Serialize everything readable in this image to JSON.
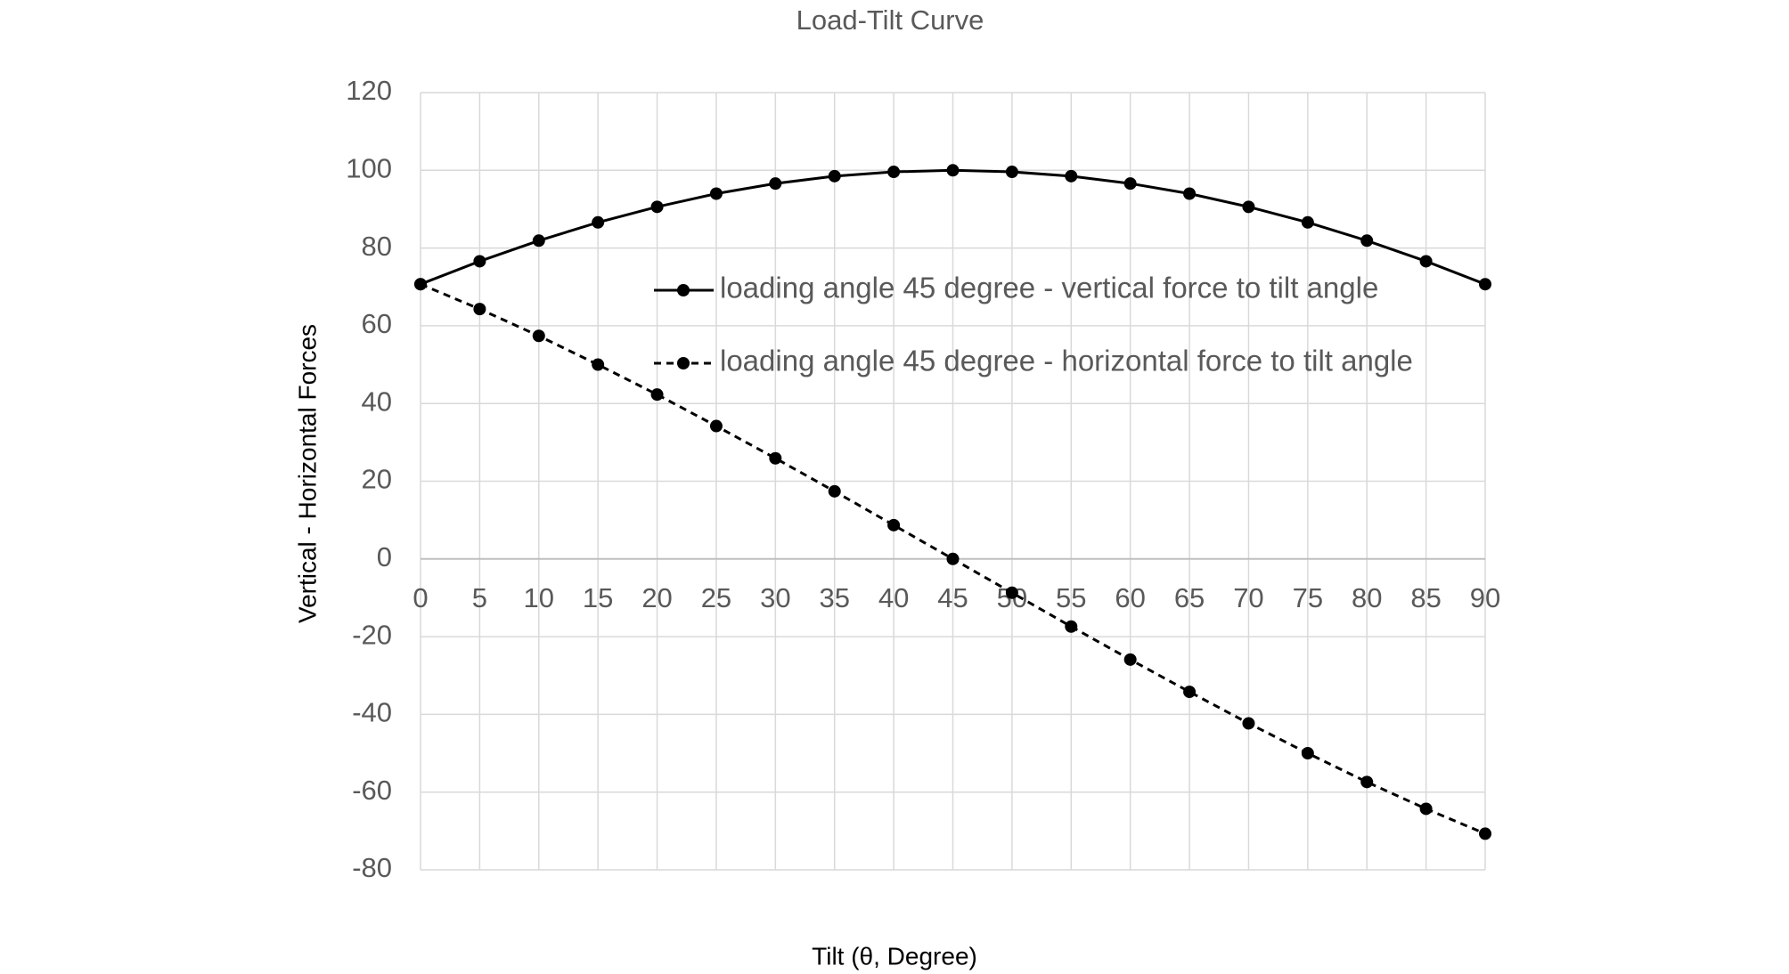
{
  "chart_data": {
    "type": "line",
    "title": "Load-Tilt Curve",
    "x_label": "Tilt (θ, Degree)",
    "y_label": "Vertical - Horizontal Forces",
    "x": [
      0,
      5,
      10,
      15,
      20,
      25,
      30,
      35,
      40,
      45,
      50,
      55,
      60,
      65,
      70,
      75,
      80,
      85,
      90
    ],
    "series": [
      {
        "name": "loading angle 45 degree - vertical force to tilt angle",
        "color": "#000000",
        "dash": "solid",
        "values": [
          70.7,
          76.6,
          81.9,
          86.6,
          90.6,
          94.0,
          96.6,
          98.5,
          99.6,
          100,
          99.6,
          98.5,
          96.6,
          94.0,
          90.6,
          86.6,
          81.9,
          76.6,
          70.7
        ]
      },
      {
        "name": "loading angle 45 degree - horizontal force to tilt angle",
        "color": "#000000",
        "dash": "dashed",
        "values": [
          70.7,
          64.3,
          57.4,
          50,
          42.3,
          34.2,
          25.9,
          17.4,
          8.7,
          0,
          -8.7,
          -17.4,
          -25.9,
          -34.2,
          -42.3,
          -50,
          -57.4,
          -64.3,
          -70.7
        ]
      }
    ],
    "xlim": [
      0,
      90
    ],
    "xticks": [
      0,
      5,
      10,
      15,
      20,
      25,
      30,
      35,
      40,
      45,
      50,
      55,
      60,
      65,
      70,
      75,
      80,
      85,
      90
    ],
    "ylim": [
      -80,
      120
    ],
    "yticks": [
      -80,
      -60,
      -40,
      -20,
      0,
      20,
      40,
      60,
      80,
      100,
      120
    ],
    "grid": true,
    "legend": "center"
  }
}
